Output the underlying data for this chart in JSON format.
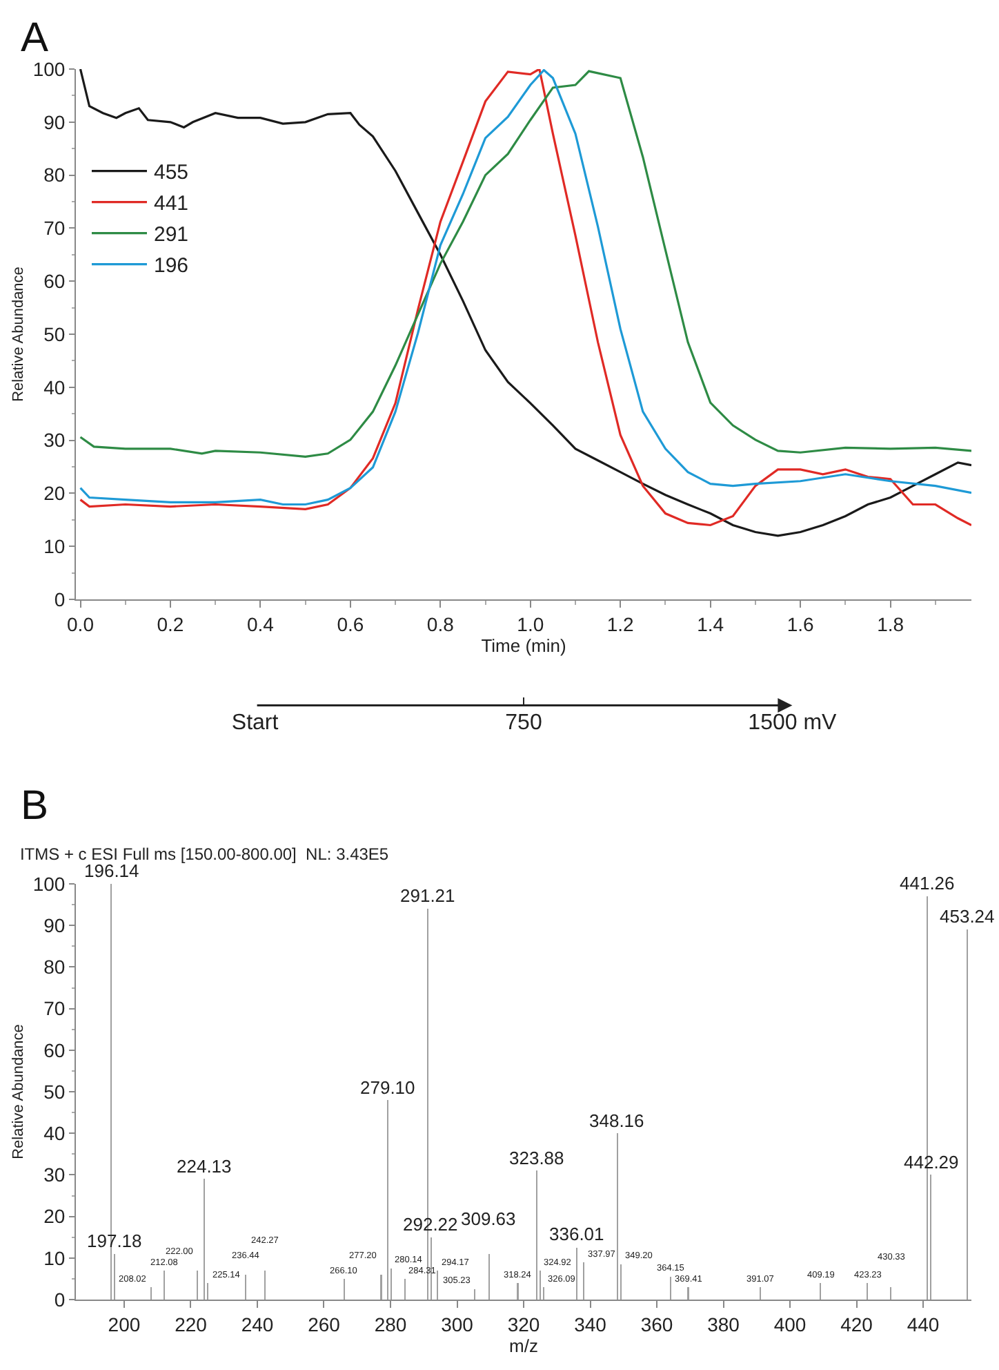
{
  "chart_data": [
    {
      "type": "line",
      "xlabel": "Time (min)",
      "ylabel": "Relative Abundance",
      "annotations": [
        "A"
      ],
      "xlim": [
        -0.01,
        1.98
      ],
      "xticks": [
        {
          "value": 0,
          "label": "0.0"
        },
        0.2,
        0.4,
        0.6,
        0.8,
        {
          "value": 1,
          "label": "1.0"
        },
        1.2,
        1.4,
        1.6,
        1.8
      ],
      "ylim": [
        0,
        100
      ],
      "yticks": [
        0,
        10,
        20,
        30,
        40,
        50,
        60,
        70,
        80,
        90,
        100
      ],
      "x2lim": [
        0,
        1500
      ],
      "x2ticks": [
        {
          "value": 0,
          "label": "Start"
        },
        750,
        {
          "value": 1500,
          "label": "1500 mV"
        }
      ],
      "grid": false,
      "legend": "top left",
      "marker": "none",
      "line_style": "solid",
      "series": [
        {
          "name": "455",
          "color": "#1a1a1a",
          "x": [
            0,
            0.01,
            0.02,
            0.05,
            0.08,
            0.1,
            0.13,
            0.15,
            0.2,
            0.23,
            0.25,
            0.3,
            0.35,
            0.4,
            0.45,
            0.5,
            0.55,
            0.6,
            0.62,
            0.65,
            0.7,
            0.75,
            0.8,
            0.85,
            0.9,
            0.95,
            1.0,
            1.05,
            1.1,
            1.15,
            1.2,
            1.25,
            1.3,
            1.35,
            1.4,
            1.45,
            1.5,
            1.55,
            1.6,
            1.65,
            1.7,
            1.75,
            1.8,
            1.85,
            1.9,
            1.95,
            1.98
          ],
          "values": [
            100,
            96.5,
            93,
            91.7,
            90.8,
            91.7,
            92.6,
            90.4,
            90,
            89,
            90,
            91.7,
            90.8,
            90.8,
            89.7,
            90,
            91.5,
            91.7,
            89.5,
            87.3,
            80.8,
            72.9,
            65,
            56.3,
            47,
            41,
            37,
            32.8,
            28.4,
            26.2,
            24,
            21.8,
            19.7,
            17.9,
            16.2,
            14,
            12.7,
            12,
            12.7,
            14,
            15.7,
            17.9,
            19.2,
            21.4,
            23.6,
            25.8,
            25.3
          ]
        },
        {
          "name": "441",
          "color": "#e02a25",
          "x": [
            0,
            0.02,
            0.1,
            0.2,
            0.3,
            0.4,
            0.5,
            0.55,
            0.6,
            0.65,
            0.7,
            0.75,
            0.8,
            0.85,
            0.9,
            0.95,
            1.0,
            1.02,
            1.05,
            1.1,
            1.15,
            1.2,
            1.25,
            1.3,
            1.35,
            1.4,
            1.45,
            1.5,
            1.55,
            1.6,
            1.65,
            1.7,
            1.75,
            1.8,
            1.85,
            1.9,
            1.95,
            1.98
          ],
          "values": [
            18.8,
            17.5,
            17.9,
            17.5,
            17.9,
            17.5,
            17,
            17.9,
            21,
            26.6,
            37,
            54.6,
            71.2,
            82.5,
            93.9,
            99.5,
            99,
            100,
            87.8,
            68.6,
            48.5,
            31,
            21.4,
            16.2,
            14.4,
            14,
            15.7,
            21.4,
            24.5,
            24.5,
            23.6,
            24.5,
            23.1,
            22.7,
            17.9,
            17.9,
            15.3,
            14
          ]
        },
        {
          "name": "291",
          "color": "#2e8b45",
          "x": [
            0,
            0.03,
            0.1,
            0.2,
            0.27,
            0.3,
            0.4,
            0.5,
            0.55,
            0.6,
            0.65,
            0.7,
            0.75,
            0.8,
            0.85,
            0.9,
            0.95,
            1.0,
            1.05,
            1.1,
            1.13,
            1.2,
            1.25,
            1.3,
            1.35,
            1.4,
            1.45,
            1.5,
            1.55,
            1.6,
            1.7,
            1.8,
            1.9,
            1.98
          ],
          "values": [
            30.6,
            28.8,
            28.4,
            28.4,
            27.5,
            28,
            27.7,
            26.9,
            27.5,
            30.1,
            35.4,
            44.1,
            53.7,
            63.3,
            71.2,
            80,
            84,
            90.4,
            96.5,
            97,
            99.6,
            98.3,
            83.4,
            65.9,
            48.5,
            37.1,
            32.8,
            30.1,
            28,
            27.7,
            28.6,
            28.4,
            28.6,
            28
          ]
        },
        {
          "name": "196",
          "color": "#1e9ad6",
          "x": [
            0,
            0.02,
            0.1,
            0.2,
            0.3,
            0.4,
            0.45,
            0.5,
            0.55,
            0.6,
            0.65,
            0.7,
            0.75,
            0.8,
            0.85,
            0.9,
            0.95,
            1.0,
            1.03,
            1.05,
            1.1,
            1.15,
            1.2,
            1.25,
            1.3,
            1.35,
            1.4,
            1.45,
            1.5,
            1.6,
            1.7,
            1.8,
            1.9,
            1.98
          ],
          "values": [
            21,
            19.2,
            18.8,
            18.3,
            18.3,
            18.8,
            17.9,
            17.9,
            18.8,
            21,
            24.9,
            35.4,
            50.2,
            66.8,
            76.4,
            87,
            91,
            97,
            99.8,
            98.3,
            87.8,
            70.3,
            51,
            35.4,
            28.4,
            24,
            21.8,
            21.4,
            21.8,
            22.3,
            23.6,
            22.3,
            21.4,
            20.1
          ]
        }
      ]
    },
    {
      "type": "bar",
      "title": "ITMS + c ESI Full ms [150.00-800.00]  NL: 3.43E5",
      "xlabel": "m/z",
      "ylabel": "Relative Abundance",
      "annotations": [
        "B",
        {
          "text": "196.14",
          "x": 196.14,
          "y": 100
        },
        {
          "text": "197.18",
          "x": 197.18,
          "y": 11
        },
        {
          "text": "208.02",
          "x": 208.02,
          "y": 3
        },
        {
          "text": "212.08",
          "x": 212.08,
          "y": 7
        },
        {
          "text": "222.00",
          "x": 222.0,
          "y": 7
        },
        {
          "text": "224.13",
          "x": 224.13,
          "y": 29
        },
        {
          "text": "225.14",
          "x": 225.14,
          "y": 4
        },
        {
          "text": "236.44",
          "x": 236.44,
          "y": 6
        },
        {
          "text": "242.27",
          "x": 242.27,
          "y": 7
        },
        {
          "text": "266.10",
          "x": 266.1,
          "y": 5
        },
        {
          "text": "277.20",
          "x": 277.2,
          "y": 6
        },
        {
          "text": "279.10",
          "x": 279.1,
          "y": 48
        },
        {
          "text": "280.14",
          "x": 280.14,
          "y": 7.5
        },
        {
          "text": "284.31",
          "x": 284.31,
          "y": 5
        },
        {
          "text": "291.21",
          "x": 291.21,
          "y": 94
        },
        {
          "text": "292.22",
          "x": 292.22,
          "y": 15
        },
        {
          "text": "294.17",
          "x": 294.17,
          "y": 7
        },
        {
          "text": "305.23",
          "x": 305.23,
          "y": 2.5
        },
        {
          "text": "309.63",
          "x": 309.63,
          "y": 11
        },
        {
          "text": "318.24",
          "x": 318.24,
          "y": 4
        },
        {
          "text": "323.88",
          "x": 323.88,
          "y": 31
        },
        {
          "text": "324.92",
          "x": 324.92,
          "y": 7
        },
        {
          "text": "326.09",
          "x": 326.09,
          "y": 3
        },
        {
          "text": "336.01",
          "x": 336.01,
          "y": 12.5
        },
        {
          "text": "337.97",
          "x": 337.97,
          "y": 9
        },
        {
          "text": "348.16",
          "x": 348.16,
          "y": 40
        },
        {
          "text": "349.20",
          "x": 349.2,
          "y": 8.5
        },
        {
          "text": "364.15",
          "x": 364.15,
          "y": 5.5
        },
        {
          "text": "369.41",
          "x": 369.41,
          "y": 3
        },
        {
          "text": "391.07",
          "x": 391.07,
          "y": 3
        },
        {
          "text": "409.19",
          "x": 409.19,
          "y": 4
        },
        {
          "text": "423.23",
          "x": 423.23,
          "y": 4
        },
        {
          "text": "430.33",
          "x": 430.33,
          "y": 3
        },
        {
          "text": "441.26",
          "x": 441.26,
          "y": 97
        },
        {
          "text": "442.29",
          "x": 442.29,
          "y": 30
        },
        {
          "text": "453.24",
          "x": 453.24,
          "y": 89
        }
      ],
      "xlim": [
        185.5,
        454.5
      ],
      "xticks": [
        200,
        220,
        240,
        260,
        280,
        300,
        320,
        340,
        360,
        380,
        400,
        420,
        440
      ],
      "ylim": [
        0,
        100
      ],
      "yticks": [
        0,
        10,
        20,
        30,
        40,
        50,
        60,
        70,
        80,
        90,
        100
      ],
      "grid": false,
      "legend": false,
      "series": [
        {
          "color": "#a0a0a0",
          "x": [
            196.14,
            197.18,
            208.02,
            212.08,
            222.0,
            224.13,
            225.14,
            236.44,
            242.27,
            266.1,
            277.2,
            279.1,
            280.14,
            284.31,
            291.21,
            292.22,
            294.17,
            305.23,
            309.63,
            318.24,
            323.88,
            324.92,
            326.09,
            336.01,
            337.97,
            348.16,
            349.2,
            364.15,
            369.41,
            391.07,
            409.19,
            423.23,
            430.33,
            441.26,
            442.29,
            453.24
          ],
          "values": [
            100,
            11,
            3,
            7,
            7,
            29,
            4,
            6,
            7,
            5,
            6,
            48,
            7.5,
            5,
            94,
            15,
            7,
            2.5,
            11,
            4,
            31,
            7,
            3,
            12.5,
            9,
            40,
            8.5,
            5.5,
            3,
            3,
            4,
            4,
            3,
            97,
            30,
            89
          ]
        }
      ]
    }
  ]
}
